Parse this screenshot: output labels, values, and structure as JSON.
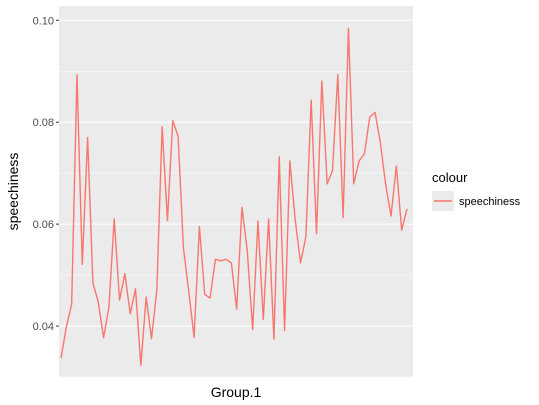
{
  "chart_data": {
    "type": "line",
    "title": "",
    "xlabel": "Group.1",
    "ylabel": "speechiness",
    "ylim": [
      0.03,
      0.1028
    ],
    "y_ticks": [
      0.04,
      0.06,
      0.08,
      0.1
    ],
    "y_tick_labels": [
      "0.04",
      "0.06",
      "0.08",
      "0.10"
    ],
    "grid": true,
    "legend": {
      "title": "colour",
      "position": "right"
    },
    "colors": {
      "panel": "#ebebeb",
      "grid": "#ffffff",
      "series": "#f8766d",
      "tick_text": "#4d4d4d",
      "tick_mark": "#333333"
    },
    "series": [
      {
        "name": "speechiness",
        "values": [
          0.0337,
          0.0398,
          0.0443,
          0.0893,
          0.0521,
          0.077,
          0.0484,
          0.0447,
          0.0377,
          0.0437,
          0.061,
          0.0451,
          0.0503,
          0.0424,
          0.0473,
          0.0323,
          0.0457,
          0.0375,
          0.047,
          0.0791,
          0.0607,
          0.0803,
          0.0772,
          0.0553,
          0.0468,
          0.0378,
          0.0595,
          0.0462,
          0.0455,
          0.0531,
          0.0528,
          0.0531,
          0.0524,
          0.0433,
          0.0633,
          0.0547,
          0.0393,
          0.0606,
          0.0413,
          0.061,
          0.0374,
          0.0732,
          0.0391,
          0.0724,
          0.0608,
          0.0524,
          0.0575,
          0.0843,
          0.0581,
          0.0881,
          0.0679,
          0.0705,
          0.0893,
          0.0613,
          0.0984,
          0.0679,
          0.0724,
          0.0738,
          0.081,
          0.0819,
          0.076,
          0.0677,
          0.0616,
          0.0714,
          0.0588,
          0.063
        ]
      }
    ]
  }
}
